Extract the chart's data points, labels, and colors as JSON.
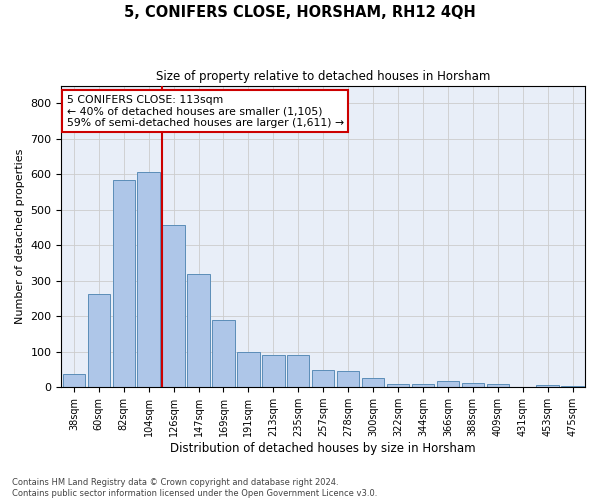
{
  "title": "5, CONIFERS CLOSE, HORSHAM, RH12 4QH",
  "subtitle": "Size of property relative to detached houses in Horsham",
  "xlabel": "Distribution of detached houses by size in Horsham",
  "ylabel": "Number of detached properties",
  "bar_color": "#aec6e8",
  "bar_edge_color": "#5b8db8",
  "grid_color": "#cccccc",
  "background_color": "#e8eef8",
  "categories": [
    "38sqm",
    "60sqm",
    "82sqm",
    "104sqm",
    "126sqm",
    "147sqm",
    "169sqm",
    "191sqm",
    "213sqm",
    "235sqm",
    "257sqm",
    "278sqm",
    "300sqm",
    "322sqm",
    "344sqm",
    "366sqm",
    "388sqm",
    "409sqm",
    "431sqm",
    "453sqm",
    "475sqm"
  ],
  "values": [
    37,
    262,
    583,
    606,
    456,
    320,
    190,
    100,
    90,
    90,
    48,
    45,
    25,
    10,
    10,
    18,
    13,
    8,
    2,
    5,
    3
  ],
  "ylim": [
    0,
    850
  ],
  "yticks": [
    0,
    100,
    200,
    300,
    400,
    500,
    600,
    700,
    800
  ],
  "property_line_x": 3.55,
  "annotation_text": "5 CONIFERS CLOSE: 113sqm\n← 40% of detached houses are smaller (1,105)\n59% of semi-detached houses are larger (1,611) →",
  "annotation_box_color": "#ffffff",
  "annotation_box_edge": "#cc0000",
  "footer_line1": "Contains HM Land Registry data © Crown copyright and database right 2024.",
  "footer_line2": "Contains public sector information licensed under the Open Government Licence v3.0."
}
